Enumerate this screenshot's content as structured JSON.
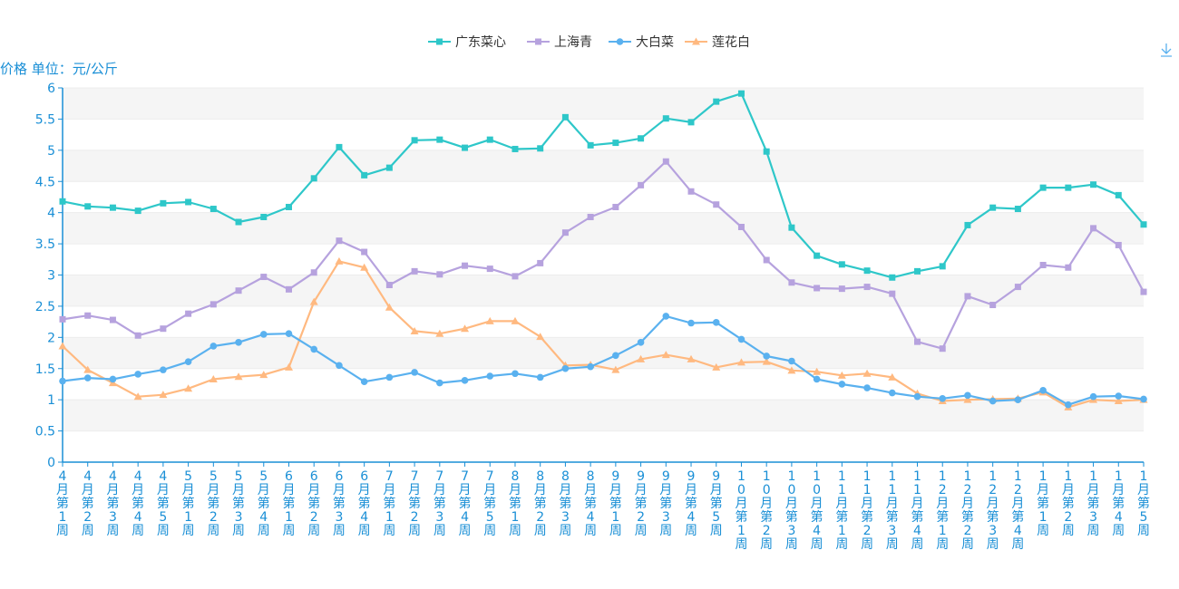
{
  "chart_data": {
    "type": "line",
    "ylabel": "价格 单位：元/公斤",
    "ylim": [
      0,
      6
    ],
    "yticks": [
      "0",
      "0.5",
      "1",
      "1.5",
      "2",
      "2.5",
      "3",
      "3.5",
      "4",
      "4.5",
      "5",
      "5.5",
      "6"
    ],
    "grid": "horizontal stripes",
    "legend_position": "top-center",
    "categories": [
      "4月第1周",
      "4月第2周",
      "4月第3周",
      "4月第4周",
      "4月第5周",
      "5月第1周",
      "5月第2周",
      "5月第3周",
      "5月第4周",
      "6月第1周",
      "6月第2周",
      "6月第3周",
      "6月第4周",
      "7月第1周",
      "7月第2周",
      "7月第3周",
      "7月第4周",
      "7月第5周",
      "8月第1周",
      "8月第2周",
      "8月第3周",
      "8月第4周",
      "9月第1周",
      "9月第2周",
      "9月第3周",
      "9月第4周",
      "9月第5周",
      "10月第1周",
      "10月第2周",
      "10月第3周",
      "10月第4周",
      "11月第1周",
      "11月第2周",
      "11月第3周",
      "11月第4周",
      "12月第1周",
      "12月第2周",
      "12月第3周",
      "12月第4周",
      "1月第1周",
      "1月第2周",
      "1月第3周",
      "1月第4周",
      "1月第5周"
    ],
    "series": [
      {
        "name": "广东菜心",
        "color": "#2ec7c9",
        "marker": "square",
        "values": [
          4.18,
          4.1,
          4.08,
          4.03,
          4.15,
          4.17,
          4.06,
          3.85,
          3.93,
          4.09,
          4.55,
          5.05,
          4.6,
          4.72,
          5.16,
          5.17,
          5.04,
          5.17,
          5.02,
          5.03,
          5.53,
          5.08,
          5.12,
          5.19,
          5.51,
          5.45,
          5.78,
          5.91,
          4.98,
          3.76,
          3.31,
          3.17,
          3.07,
          2.96,
          3.06,
          3.14,
          3.8,
          4.08,
          4.06,
          4.4,
          4.4,
          4.45,
          4.28,
          3.81
        ]
      },
      {
        "name": "上海青",
        "color": "#b6a2de",
        "marker": "square",
        "values": [
          2.29,
          2.35,
          2.28,
          2.03,
          2.14,
          2.38,
          2.53,
          2.75,
          2.97,
          2.77,
          3.04,
          3.55,
          3.37,
          2.84,
          3.06,
          3.01,
          3.15,
          3.1,
          2.98,
          3.19,
          3.68,
          3.93,
          4.09,
          4.44,
          4.82,
          4.34,
          4.13,
          3.77,
          3.24,
          2.88,
          2.79,
          2.78,
          2.81,
          2.7,
          1.93,
          1.82,
          2.66,
          2.52,
          2.81,
          3.16,
          3.12,
          3.75,
          3.48,
          2.73
        ]
      },
      {
        "name": "大白菜",
        "color": "#5ab1ef",
        "marker": "circle",
        "values": [
          1.3,
          1.35,
          1.33,
          1.41,
          1.48,
          1.61,
          1.86,
          1.92,
          2.05,
          2.06,
          1.81,
          1.55,
          1.29,
          1.36,
          1.44,
          1.27,
          1.31,
          1.38,
          1.42,
          1.36,
          1.5,
          1.53,
          1.71,
          1.92,
          2.34,
          2.23,
          2.24,
          1.97,
          1.7,
          1.62,
          1.33,
          1.25,
          1.19,
          1.11,
          1.05,
          1.02,
          1.07,
          0.98,
          1.0,
          1.15,
          0.92,
          1.05,
          1.06,
          1.01
        ]
      },
      {
        "name": "莲花白",
        "color": "#ffb980",
        "marker": "triangle",
        "values": [
          1.86,
          1.48,
          1.27,
          1.05,
          1.08,
          1.18,
          1.33,
          1.37,
          1.4,
          1.52,
          2.57,
          3.22,
          3.12,
          2.48,
          2.1,
          2.06,
          2.14,
          2.26,
          2.26,
          2.01,
          1.55,
          1.56,
          1.48,
          1.65,
          1.72,
          1.65,
          1.52,
          1.6,
          1.61,
          1.47,
          1.45,
          1.39,
          1.42,
          1.36,
          1.1,
          0.98,
          1.0,
          1.01,
          1.02,
          1.12,
          0.88,
          1.0,
          0.98,
          1.0
        ]
      }
    ]
  },
  "toolbar": {
    "save_icon": "download-icon"
  }
}
